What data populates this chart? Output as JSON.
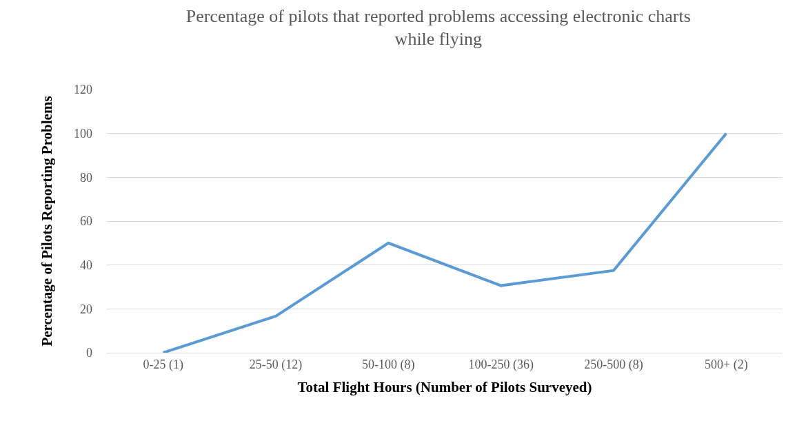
{
  "chart_data": {
    "type": "line",
    "title": "Percentage of pilots that reported problems accessing electronic charts while flying",
    "xlabel": "Total Flight Hours (Number of Pilots Surveyed)",
    "ylabel": "Percentage of Pilots Reporting Problems",
    "categories": [
      "0-25 (1)",
      "25-50 (12)",
      "50-100 (8)",
      "100-250 (36)",
      "250-500 (8)",
      "500+ (2)"
    ],
    "series": [
      {
        "color": "#5b9bd5",
        "values": [
          0,
          16.7,
          50,
          30.6,
          37.5,
          100
        ]
      }
    ],
    "ylim": [
      0,
      120
    ],
    "yticks": [
      0,
      20,
      40,
      60,
      80,
      100,
      120
    ],
    "grid": "y",
    "marker": "none",
    "line_style": "solid"
  }
}
